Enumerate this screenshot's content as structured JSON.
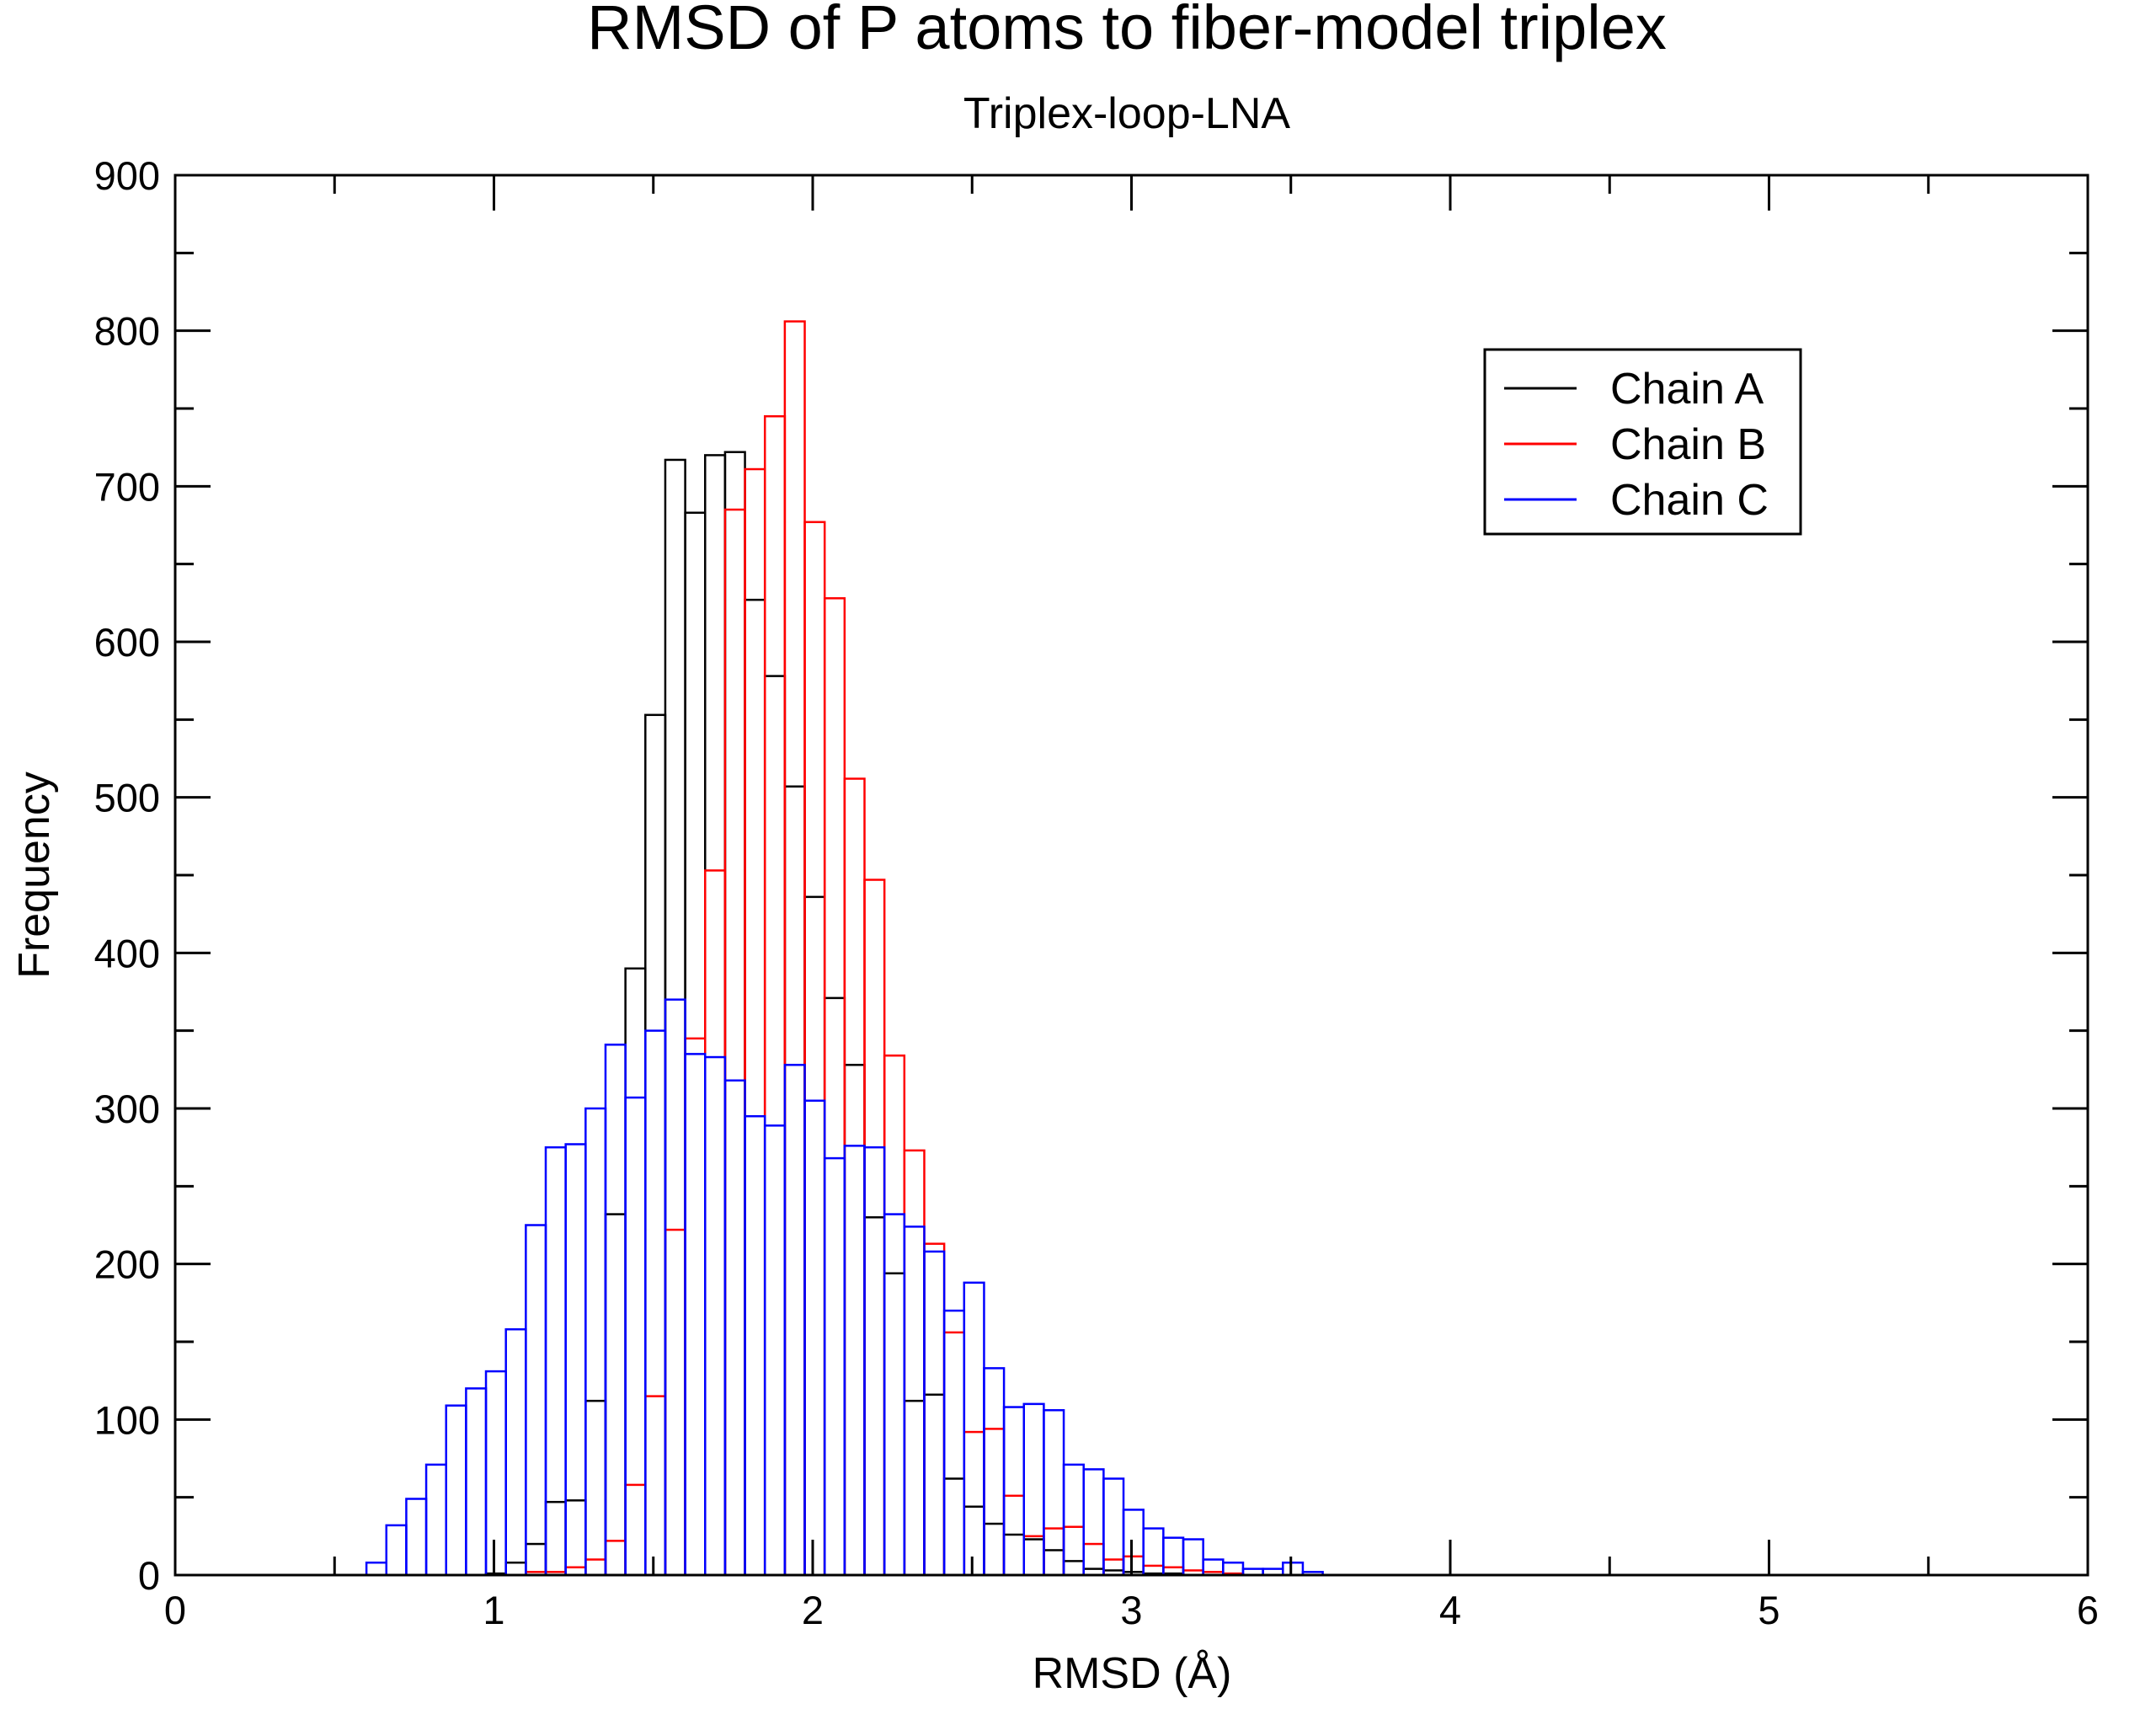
{
  "chart_data": {
    "type": "histogram",
    "title": "RMSD of P atoms to fiber-model triplex",
    "subtitle": "Triplex-loop-LNA",
    "xlabel": "RMSD (Å)",
    "ylabel": "Frequency",
    "xlim": [
      0,
      6
    ],
    "ylim": [
      0,
      900
    ],
    "xticks": [
      "0",
      "1",
      "2",
      "3",
      "4",
      "5",
      "6"
    ],
    "yticks": [
      "0",
      "100",
      "200",
      "300",
      "400",
      "500",
      "600",
      "700",
      "800",
      "900"
    ],
    "grid": false,
    "legend_position": "top-right",
    "bin_start": 0.6,
    "bin_width": 0.0625,
    "series": [
      {
        "name": "Chain A",
        "color": "#000000",
        "values": [
          0,
          0,
          0,
          0,
          0,
          0,
          1,
          8,
          20,
          47,
          48,
          112,
          232,
          390,
          553,
          717,
          683,
          720,
          722,
          627,
          578,
          507,
          436,
          371,
          328,
          230,
          194,
          112,
          116,
          62,
          44,
          33,
          26,
          23,
          16,
          9,
          4,
          3,
          2,
          1,
          1,
          0,
          0,
          0,
          0,
          0,
          0,
          0
        ]
      },
      {
        "name": "Chain B",
        "color": "#ff0000",
        "values": [
          0,
          0,
          0,
          0,
          0,
          0,
          0,
          0,
          2,
          2,
          5,
          10,
          22,
          58,
          115,
          222,
          345,
          453,
          685,
          711,
          745,
          806,
          677,
          628,
          512,
          447,
          334,
          273,
          213,
          156,
          92,
          94,
          51,
          25,
          30,
          31,
          20,
          10,
          12,
          6,
          5,
          3,
          2,
          1,
          0,
          0,
          0,
          0
        ]
      },
      {
        "name": "Chain C",
        "color": "#0000ff",
        "values": [
          8,
          32,
          49,
          71,
          109,
          120,
          131,
          158,
          225,
          275,
          277,
          300,
          341,
          307,
          350,
          370,
          335,
          333,
          318,
          295,
          289,
          328,
          305,
          268,
          276,
          275,
          232,
          224,
          208,
          170,
          188,
          133,
          108,
          110,
          106,
          71,
          68,
          62,
          42,
          30,
          24,
          23,
          10,
          8,
          4,
          4,
          8,
          2
        ]
      }
    ]
  }
}
